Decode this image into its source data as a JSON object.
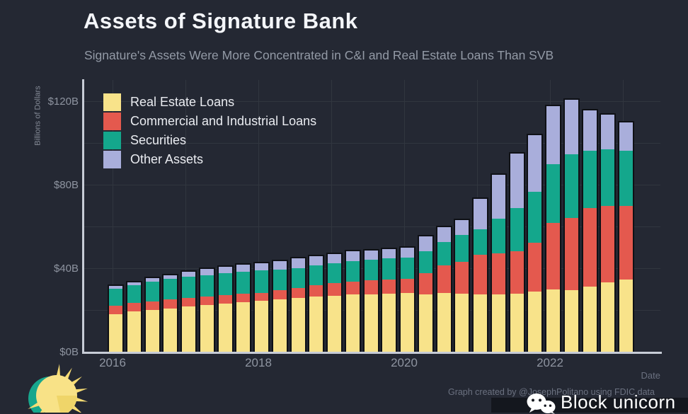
{
  "header": {
    "title": "Assets of Signature Bank",
    "subtitle": "Signature's Assets Were More Concentrated in C&I and Real Estate Loans Than SVB"
  },
  "chart_data": {
    "type": "bar",
    "stacked": true,
    "title": "Assets of Signature Bank",
    "subtitle": "Signature's Assets Were More Concentrated in C&I and Real Estate Loans Than SVB",
    "xlabel": "Date",
    "ylabel": "Billions of Dollars",
    "unit": "billions of USD",
    "ylim": [
      0,
      130
    ],
    "grid": true,
    "legend_position": "top-left",
    "x": [
      "2015 Q4",
      "2016 Q1",
      "2016 Q2",
      "2016 Q3",
      "2016 Q4",
      "2017 Q1",
      "2017 Q2",
      "2017 Q3",
      "2017 Q4",
      "2018 Q1",
      "2018 Q2",
      "2018 Q3",
      "2018 Q4",
      "2019 Q1",
      "2019 Q2",
      "2019 Q3",
      "2019 Q4",
      "2020 Q1",
      "2020 Q2",
      "2020 Q3",
      "2020 Q4",
      "2021 Q1",
      "2021 Q2",
      "2021 Q3",
      "2021 Q4",
      "2022 Q1",
      "2022 Q2",
      "2022 Q3",
      "2022 Q4"
    ],
    "series": [
      {
        "name": "Real Estate Loans",
        "color": "#f8e38a",
        "values": [
          18.4,
          19.6,
          20.4,
          21.2,
          22.0,
          22.8,
          23.5,
          24.2,
          24.9,
          25.6,
          26.2,
          26.8,
          27.3,
          27.7,
          28.0,
          28.3,
          28.6,
          27.8,
          28.3,
          28.0,
          27.8,
          27.7,
          27.9,
          28.9,
          30.1,
          29.5,
          31.2,
          33.3,
          34.8
        ]
      },
      {
        "name": "Commercial and Industrial Loans",
        "color": "#e4594e",
        "values": [
          4.1,
          4.2,
          4.3,
          4.3,
          4.2,
          4.1,
          4.0,
          3.9,
          3.8,
          4.3,
          4.9,
          5.5,
          6.1,
          6.4,
          6.6,
          6.7,
          6.8,
          10.4,
          13.5,
          15.6,
          18.9,
          19.7,
          20.5,
          23.5,
          32.0,
          35.0,
          38.0,
          36.8,
          35.3
        ]
      },
      {
        "name": "Securities",
        "color": "#14a78c",
        "values": [
          8.2,
          8.7,
          9.6,
          10.0,
          10.2,
          10.4,
          10.6,
          10.7,
          10.8,
          9.9,
          9.6,
          9.5,
          9.6,
          9.9,
          10.1,
          10.2,
          10.3,
          10.5,
          11.5,
          13.0,
          12.5,
          16.7,
          20.9,
          24.6,
          28.3,
          30.5,
          27.6,
          27.4,
          26.9
        ]
      },
      {
        "name": "Other Assets",
        "color": "#a9aedb",
        "values": [
          1.6,
          1.5,
          1.6,
          1.9,
          2.5,
          2.9,
          3.2,
          3.6,
          3.6,
          4.4,
          4.7,
          4.5,
          4.4,
          4.9,
          4.5,
          4.7,
          4.9,
          7.1,
          7.0,
          7.2,
          14.7,
          21.3,
          26.3,
          27.5,
          28.0,
          26.4,
          19.6,
          16.6,
          13.4
        ]
      }
    ],
    "y_ticks": [
      {
        "label": "$0B",
        "value": 0
      },
      {
        "label": "$40B",
        "value": 40
      },
      {
        "label": "$80B",
        "value": 80
      },
      {
        "label": "$120B",
        "value": 120
      }
    ],
    "x_ticks": [
      {
        "label": "2016",
        "year": 2016
      },
      {
        "label": "2018",
        "year": 2018
      },
      {
        "label": "2020",
        "year": 2020
      },
      {
        "label": "2022",
        "year": 2022
      }
    ],
    "y_gridlines": [
      20,
      40,
      60,
      80,
      100,
      120
    ],
    "x_gridline_years": [
      2016,
      2017,
      2018,
      2019,
      2020,
      2021,
      2022,
      2023
    ]
  },
  "footer": {
    "caption": "Graph created by @JosephPolitano using FDIC data",
    "watermark_text": "Block unicorn",
    "watermark_icon": "wechat-icon",
    "logo": "apricitas-sun-logo"
  },
  "colors": {
    "background": "#242833",
    "bar_outline": "#0f1116",
    "gridline": "#31363f",
    "axis_spine": "#c7ccd6",
    "title_text": "#f4f6fa",
    "subtitle_text": "#939aa6",
    "tick_text": "#8e94a0",
    "caption_text": "#6b7180",
    "watermark_bg": "#14171e",
    "sun_yellow": "#f8e287",
    "sun_shade": "#efd569",
    "sun_teal": "#17a78d"
  }
}
